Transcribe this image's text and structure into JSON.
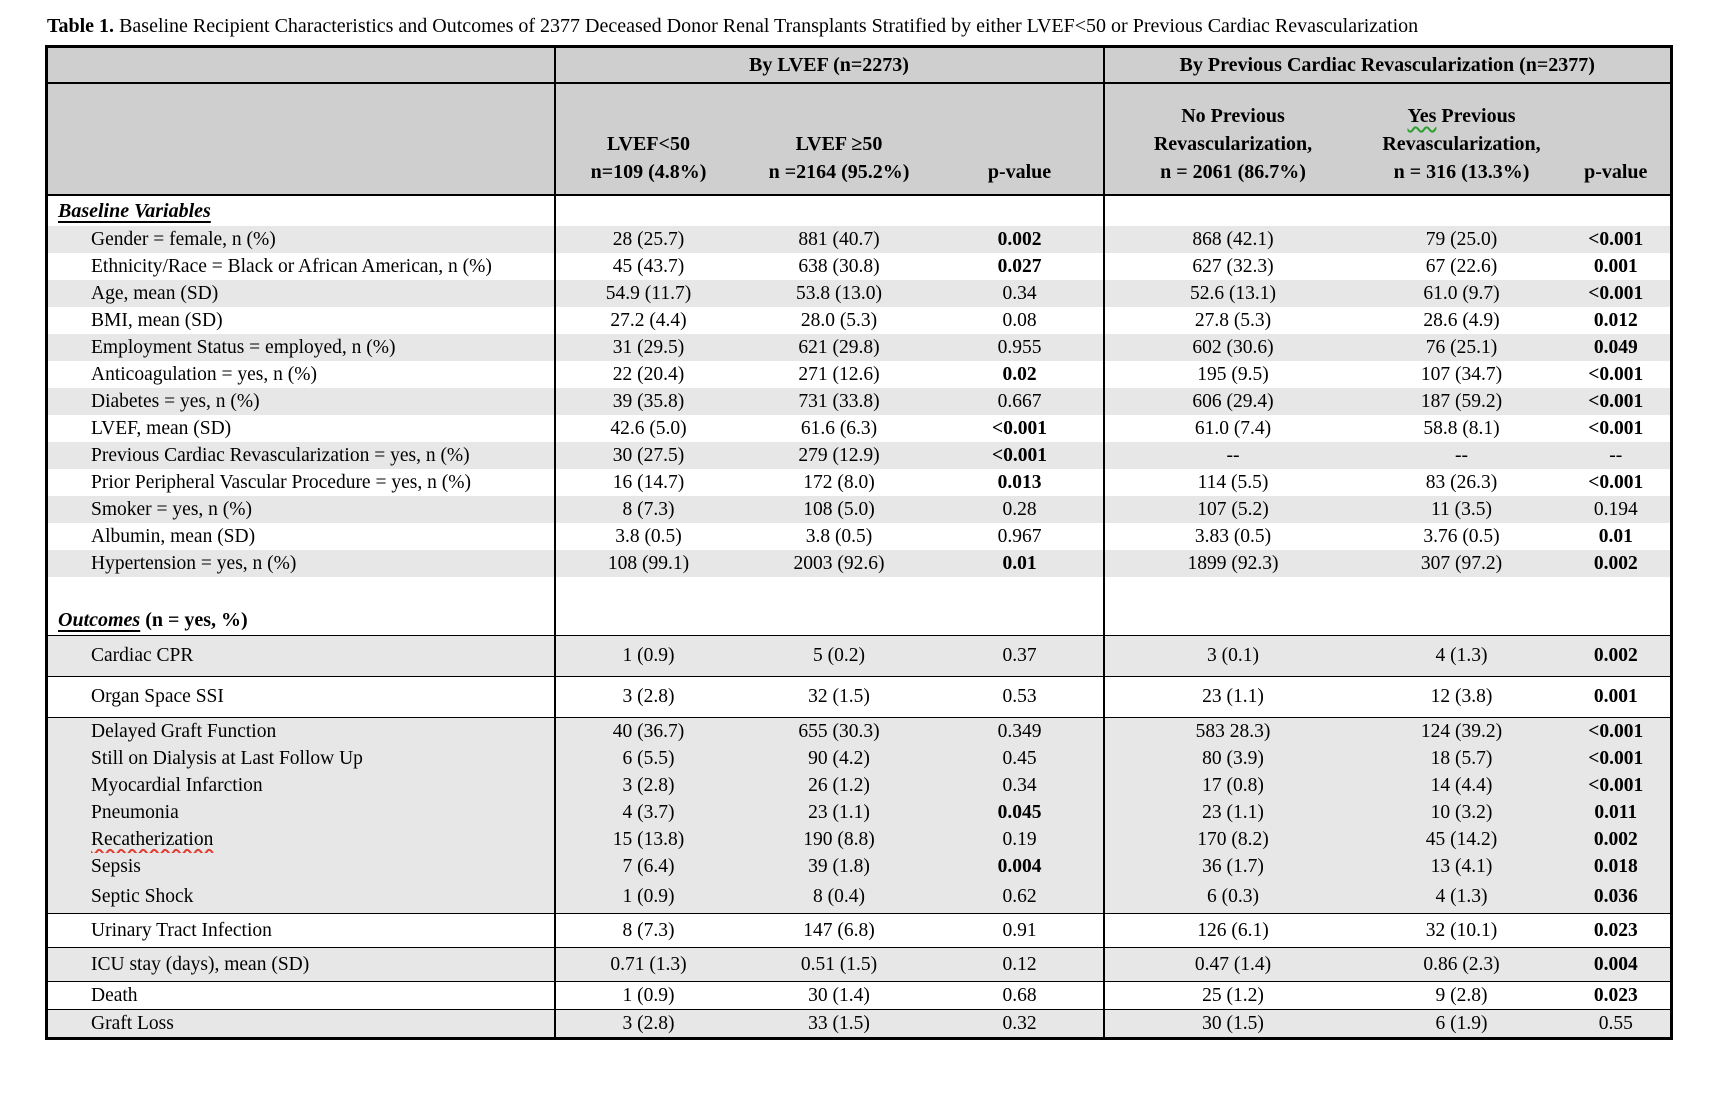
{
  "title": {
    "prefix": "Table 1.",
    "text": " Baseline Recipient Characteristics and Outcomes of 2377 Deceased Donor Renal Transplants Stratified by either LVEF<50 or Previous Cardiac Revascularization"
  },
  "header": {
    "group_lvef": "By LVEF (n=2273)",
    "group_revasc": "By Previous Cardiac Revascularization (n=2377)",
    "col_lvef_low": {
      "line1": "LVEF<50",
      "line2": "n=109 (4.8%)"
    },
    "col_lvef_high": {
      "line1": "LVEF ≥50",
      "line2": "n =2164 (95.2%)"
    },
    "col_pvalue_left": "p-value",
    "col_no_revasc": {
      "line1": "No Previous",
      "line2": "Revascularization,",
      "line3": "n = 2061 (86.7%)"
    },
    "col_yes_revasc": {
      "word1": "Yes",
      "line1_rest": "Previous",
      "line2": "Revascularization,",
      "line3": "n = 316 (13.3%)"
    },
    "col_pvalue_right": "p-value"
  },
  "sections": [
    {
      "heading": {
        "title": "Baseline Variables",
        "suffix": ""
      },
      "rows": [
        {
          "label": "Gender = female, n (%)",
          "v": [
            "28 (25.7)",
            "881 (40.7)",
            "0.002",
            "868 (42.1)",
            "79 (25.0)",
            "<0.001"
          ],
          "b1": true,
          "b2": true,
          "shaded": true
        },
        {
          "label": "Ethnicity/Race = Black or African American, n (%)",
          "v": [
            "45 (43.7)",
            "638 (30.8)",
            "0.027",
            "627 (32.3)",
            "67 (22.6)",
            "0.001"
          ],
          "b1": true,
          "b2": true,
          "shaded": false
        },
        {
          "label": "Age, mean (SD)",
          "v": [
            "54.9 (11.7)",
            "53.8 (13.0)",
            "0.34",
            "52.6 (13.1)",
            "61.0 (9.7)",
            "<0.001"
          ],
          "b1": false,
          "b2": true,
          "shaded": true
        },
        {
          "label": "BMI, mean (SD)",
          "v": [
            "27.2 (4.4)",
            "28.0 (5.3)",
            "0.08",
            "27.8 (5.3)",
            "28.6 (4.9)",
            "0.012"
          ],
          "b1": false,
          "b2": true,
          "shaded": false
        },
        {
          "label": "Employment Status = employed, n (%)",
          "v": [
            "31 (29.5)",
            "621 (29.8)",
            "0.955",
            "602 (30.6)",
            "76 (25.1)",
            "0.049"
          ],
          "b1": false,
          "b2": true,
          "shaded": true
        },
        {
          "label": "Anticoagulation = yes, n (%)",
          "v": [
            "22 (20.4)",
            "271 (12.6)",
            "0.02",
            "195 (9.5)",
            "107 (34.7)",
            "<0.001"
          ],
          "b1": true,
          "b2": true,
          "shaded": false
        },
        {
          "label": "Diabetes = yes, n (%)",
          "v": [
            "39 (35.8)",
            "731 (33.8)",
            "0.667",
            "606 (29.4)",
            "187 (59.2)",
            "<0.001"
          ],
          "b1": false,
          "b2": true,
          "shaded": true
        },
        {
          "label": "LVEF, mean (SD)",
          "v": [
            "42.6 (5.0)",
            "61.6 (6.3)",
            "<0.001",
            "61.0 (7.4)",
            "58.8 (8.1)",
            "<0.001"
          ],
          "b1": true,
          "b2": true,
          "shaded": false
        },
        {
          "label": "Previous Cardiac Revascularization = yes, n (%)",
          "v": [
            "30 (27.5)",
            "279 (12.9)",
            "<0.001",
            "--",
            "--",
            "--"
          ],
          "b1": true,
          "b2": false,
          "shaded": true
        },
        {
          "label": "Prior Peripheral Vascular Procedure = yes, n (%)",
          "v": [
            "16 (14.7)",
            "172 (8.0)",
            "0.013",
            "114 (5.5)",
            "83 (26.3)",
            "<0.001"
          ],
          "b1": true,
          "b2": true,
          "shaded": false
        },
        {
          "label": "Smoker = yes, n (%)",
          "v": [
            "8 (7.3)",
            "108 (5.0)",
            "0.28",
            "107 (5.2)",
            "11 (3.5)",
            "0.194"
          ],
          "b1": false,
          "b2": false,
          "shaded": true
        },
        {
          "label": "Albumin, mean (SD)",
          "v": [
            "3.8 (0.5)",
            "3.8 (0.5)",
            "0.967",
            "3.83 (0.5)",
            "3.76 (0.5)",
            "0.01"
          ],
          "b1": false,
          "b2": true,
          "shaded": false
        },
        {
          "label": "Hypertension = yes, n (%)",
          "v": [
            "108 (99.1)",
            "2003 (92.6)",
            "0.01",
            "1899 (92.3)",
            "307 (97.2)",
            "0.002"
          ],
          "b1": true,
          "b2": true,
          "shaded": true
        }
      ]
    },
    {
      "heading": {
        "title": "Outcomes",
        "suffix": " (n = yes, %)"
      },
      "rows": [
        {
          "label": "Cardiac CPR",
          "v": [
            "1 (0.9)",
            "5 (0.2)",
            "0.37",
            "3 (0.1)",
            "4 (1.3)",
            "0.002"
          ],
          "b1": false,
          "b2": true,
          "shaded": true,
          "bt": true,
          "h": "tall"
        },
        {
          "label": "Organ Space SSI",
          "v": [
            "3 (2.8)",
            "32 (1.5)",
            "0.53",
            "23 (1.1)",
            "12 (3.8)",
            "0.001"
          ],
          "b1": false,
          "b2": true,
          "shaded": false,
          "bt": true,
          "h": "tall"
        },
        {
          "label": "Delayed Graft Function",
          "v": [
            "40 (36.7)",
            "655 (30.3)",
            "0.349",
            "583 28.3)",
            "124 (39.2)",
            "<0.001"
          ],
          "b1": false,
          "b2": true,
          "shaded": true,
          "bt": true
        },
        {
          "label": "Still on Dialysis at Last Follow Up",
          "v": [
            "6 (5.5)",
            "90 (4.2)",
            "0.45",
            "80 (3.9)",
            "18 (5.7)",
            "<0.001"
          ],
          "b1": false,
          "b2": true,
          "shaded": true
        },
        {
          "label": "Myocardial Infarction",
          "v": [
            "3 (2.8)",
            "26 (1.2)",
            "0.34",
            "17 (0.8)",
            "14 (4.4)",
            "<0.001"
          ],
          "b1": false,
          "b2": true,
          "shaded": true
        },
        {
          "label": "Pneumonia",
          "v": [
            "4 (3.7)",
            "23 (1.1)",
            "0.045",
            "23 (1.1)",
            "10 (3.2)",
            "0.011"
          ],
          "b1": true,
          "b2": true,
          "shaded": true
        },
        {
          "label": "Recatherization",
          "v": [
            "15 (13.8)",
            "190 (8.8)",
            "0.19",
            "170 (8.2)",
            "45 (14.2)",
            "0.002"
          ],
          "b1": false,
          "b2": true,
          "shaded": true,
          "misspelled": true
        },
        {
          "label": "Sepsis",
          "v": [
            "7 (6.4)",
            "39 (1.8)",
            "0.004",
            "36 (1.7)",
            "13 (4.1)",
            "0.018"
          ],
          "b1": true,
          "b2": true,
          "shaded": true
        },
        {
          "label": "Septic Shock",
          "v": [
            "1 (0.9)",
            "8 (0.4)",
            "0.62",
            "6 (0.3)",
            "4 (1.3)",
            "0.036"
          ],
          "b1": false,
          "b2": true,
          "shaded": true,
          "h": "mid"
        },
        {
          "label": "Urinary Tract Infection",
          "v": [
            "8 (7.3)",
            "147 (6.8)",
            "0.91",
            "126 (6.1)",
            "32 (10.1)",
            "0.023"
          ],
          "b1": false,
          "b2": true,
          "shaded": false,
          "bt": true,
          "h": "mid"
        },
        {
          "label": "ICU stay (days), mean (SD)",
          "v": [
            "0.71 (1.3)",
            "0.51 (1.5)",
            "0.12",
            "0.47 (1.4)",
            "0.86 (2.3)",
            "0.004"
          ],
          "b1": false,
          "b2": true,
          "shaded": true,
          "bt": true,
          "h": "mid"
        },
        {
          "label": "Death",
          "v": [
            "1 (0.9)",
            "30 (1.4)",
            "0.68",
            "25 (1.2)",
            "9 (2.8)",
            "0.023"
          ],
          "b1": false,
          "b2": true,
          "shaded": false,
          "bt": true
        },
        {
          "label": "Graft Loss",
          "v": [
            "3 (2.8)",
            "33 (1.5)",
            "0.32",
            "30 (1.5)",
            "6 (1.9)",
            "0.55"
          ],
          "b1": false,
          "b2": false,
          "shaded": true,
          "bt": true
        }
      ]
    }
  ]
}
